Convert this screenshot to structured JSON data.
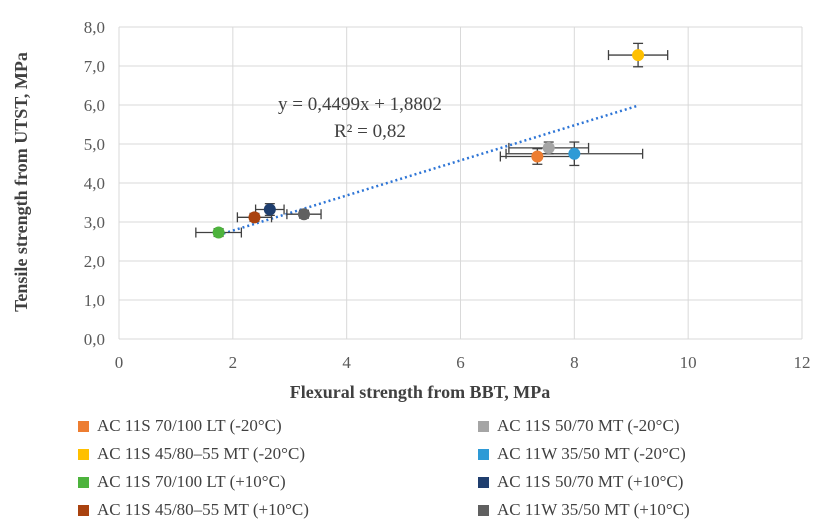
{
  "chart_data": {
    "type": "scatter",
    "xlabel": "Flexural strength from BBT, MPa",
    "ylabel": "Tensile strength from UTST, MPa",
    "xlim": [
      0,
      12
    ],
    "ylim": [
      0,
      8
    ],
    "x_ticks": [
      "0",
      "2",
      "4",
      "6",
      "8",
      "10",
      "12"
    ],
    "y_ticks": [
      "0,0",
      "1,0",
      "2,0",
      "3,0",
      "4,0",
      "5,0",
      "6,0",
      "7,0",
      "8,0"
    ],
    "grid": "on",
    "legend_position": "bottom",
    "series": [
      {
        "name": "AC 11S 70/100 LT (-20°C)",
        "color": "#ED7D31",
        "x": 7.35,
        "y": 4.68,
        "x_err": 0.65,
        "y_err": 0.2
      },
      {
        "name": "AC 11S 50/70 MT (-20°C)",
        "color": "#A5A5A5",
        "x": 7.55,
        "y": 4.9,
        "x_err": 0.7,
        "y_err": 0.15
      },
      {
        "name": "AC 11S 45/80–55 MT (-20°C)",
        "color": "#FFC000",
        "x": 9.12,
        "y": 7.28,
        "x_err": 0.52,
        "y_err": 0.3
      },
      {
        "name": "AC 11W 35/50 MT (-20°C)",
        "color": "#2E9AD6",
        "x": 8.0,
        "y": 4.75,
        "x_err": 1.2,
        "y_err": 0.3
      },
      {
        "name": "AC 11S 70/100 LT (+10°C)",
        "color": "#4DB33D",
        "x": 1.75,
        "y": 2.73,
        "x_err": 0.4,
        "y_err": 0.1
      },
      {
        "name": "AC 11S 50/70 MT (+10°C)",
        "color": "#1F3E6E",
        "x": 2.65,
        "y": 3.32,
        "x_err": 0.25,
        "y_err": 0.15
      },
      {
        "name": "AC 11S 45/80–55 MT (+10°C)",
        "color": "#A9420F",
        "x": 2.38,
        "y": 3.12,
        "x_err": 0.3,
        "y_err": 0.1
      },
      {
        "name": "AC 11W 35/50 MT (+10°C)",
        "color": "#606060",
        "x": 3.25,
        "y": 3.2,
        "x_err": 0.3,
        "y_err": 0.1
      }
    ],
    "trendline": {
      "equation": "y = 0,4499x + 1,8802",
      "r2": "R² = 0,82",
      "slope": 0.4499,
      "intercept": 1.8802,
      "x_range": [
        1.75,
        9.12
      ],
      "color": "#2E75D6"
    }
  }
}
